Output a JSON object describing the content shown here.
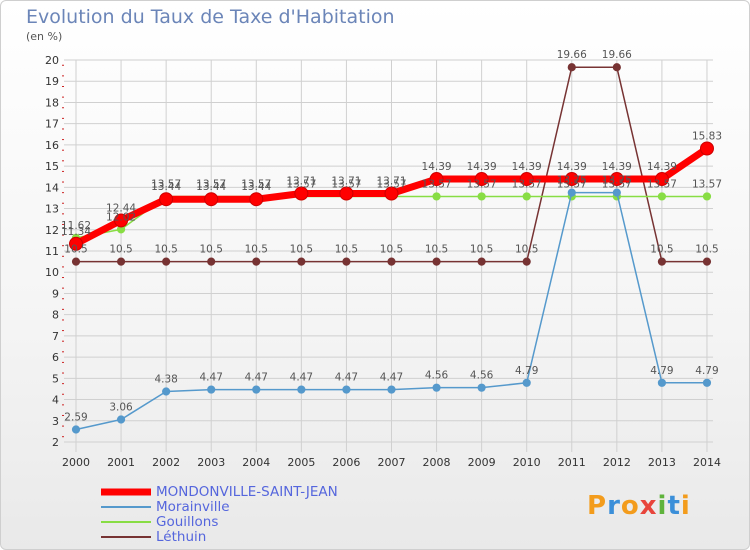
{
  "title": "Evolution du Taux de Taxe d'Habitation",
  "subtitle": "(en %)",
  "logo": {
    "letters": [
      "P",
      "r",
      "o",
      "x",
      "i",
      "t",
      "i"
    ],
    "colors": [
      "#f39c1c",
      "#3b8fd9",
      "#f39c1c",
      "#e8453c",
      "#5fb33c",
      "#3b8fd9",
      "#f39c1c"
    ]
  },
  "chart_data": {
    "type": "line",
    "title": "Evolution du Taux de Taxe d'Habitation",
    "ylabel": "(en %)",
    "ylim": [
      2,
      20
    ],
    "yticks": [
      "2",
      "3",
      "4",
      "5",
      "6",
      "7",
      "8",
      "9",
      "10",
      "11",
      "12",
      "13",
      "14",
      "15",
      "16",
      "17",
      "18",
      "19",
      "20"
    ],
    "categories": [
      "2000",
      "2001",
      "2002",
      "2003",
      "2004",
      "2005",
      "2006",
      "2007",
      "2008",
      "2009",
      "2010",
      "2011",
      "2012",
      "2013",
      "2014"
    ],
    "series": [
      {
        "name": "MONDONVILLE-SAINT-JEAN",
        "color": "#ff0000",
        "labelColor": "#5566dd",
        "values": [
          11.34,
          12.44,
          13.44,
          13.44,
          13.44,
          13.71,
          13.71,
          13.71,
          14.39,
          14.39,
          14.39,
          14.39,
          14.39,
          14.39,
          15.83
        ],
        "labels": [
          "11.34",
          "12.44",
          "13.44",
          "13.44",
          "13.44",
          "13.71",
          "13.71",
          "13.71",
          "14.39",
          "14.39",
          "14.39",
          "14.39",
          "14.39",
          "14.39",
          "15.83"
        ]
      },
      {
        "name": "Morainville",
        "color": "#5599cc",
        "labelColor": "#5566dd",
        "values": [
          2.59,
          3.06,
          4.38,
          4.47,
          4.47,
          4.47,
          4.47,
          4.47,
          4.56,
          4.56,
          4.79,
          13.75,
          13.75,
          4.79,
          4.79
        ],
        "labels": [
          "2.59",
          "3.06",
          "4.38",
          "4.47",
          "4.47",
          "4.47",
          "4.47",
          "4.47",
          "4.56",
          "4.56",
          "4.79",
          "13.75",
          "13.75",
          "4.79",
          "4.79"
        ]
      },
      {
        "name": "Gouillons",
        "color": "#88dd44",
        "labelColor": "#5566dd",
        "values": [
          11.62,
          12.02,
          13.57,
          13.57,
          13.57,
          13.57,
          13.57,
          13.57,
          13.57,
          13.57,
          13.57,
          13.57,
          13.57,
          13.57,
          13.57
        ],
        "labels": [
          "11.62",
          "12.02",
          "13.57",
          "13.57",
          "13.57",
          "13.57",
          "13.57",
          "13.57",
          "13.57",
          "13.57",
          "13.57",
          "13.57",
          "13.57",
          "13.57",
          "13.57"
        ]
      },
      {
        "name": "Léthuin",
        "color": "#773333",
        "labelColor": "#5566dd",
        "values": [
          10.5,
          10.5,
          10.5,
          10.5,
          10.5,
          10.5,
          10.5,
          10.5,
          10.5,
          10.5,
          10.5,
          19.66,
          19.66,
          10.5,
          10.5
        ],
        "labels": [
          "10.5",
          "10.5",
          "10.5",
          "10.5",
          "10.5",
          "10.5",
          "10.5",
          "10.5",
          "10.5",
          "10.5",
          "10.5",
          "19.66",
          "19.66",
          "10.5",
          "10.5"
        ]
      }
    ]
  }
}
